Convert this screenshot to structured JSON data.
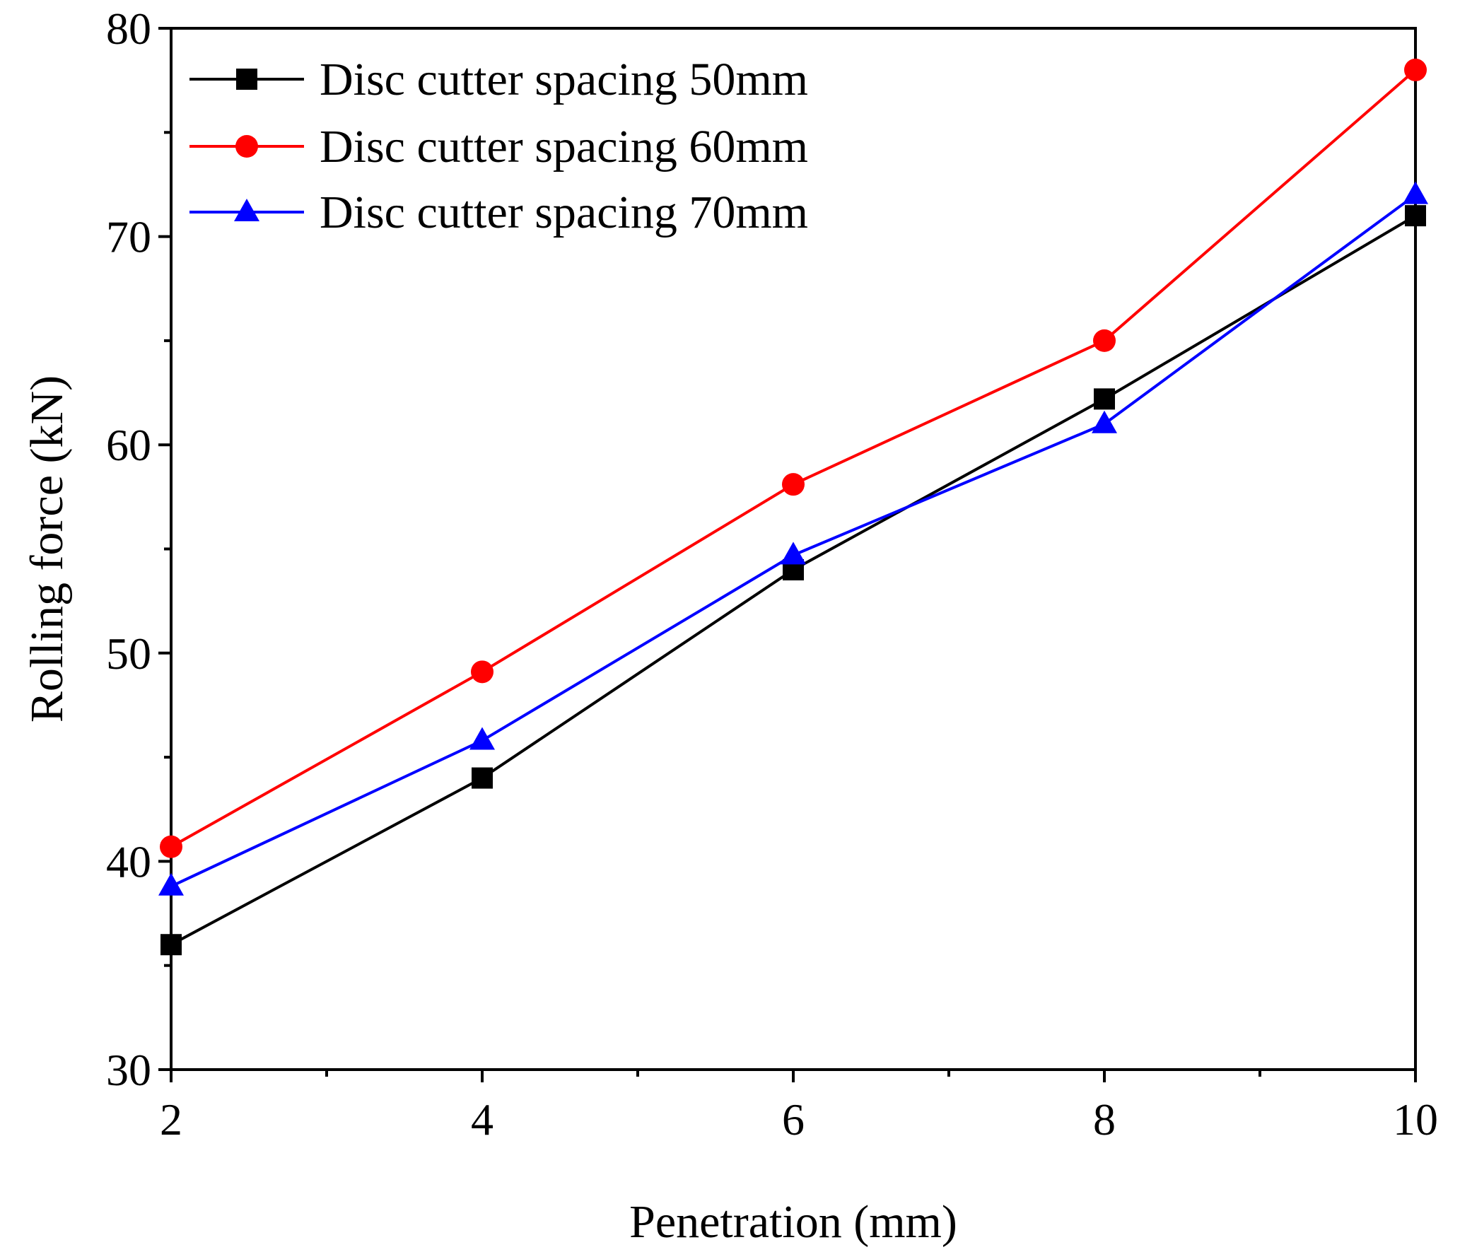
{
  "chart_data": {
    "type": "line",
    "title": "",
    "xlabel": "Penetration (mm)",
    "ylabel": "Rolling force (kN)",
    "x": [
      2,
      4,
      6,
      8,
      10
    ],
    "xlim": [
      2,
      10
    ],
    "ylim": [
      30,
      80
    ],
    "x_ticks": [
      2,
      4,
      6,
      8,
      10
    ],
    "y_ticks": [
      30,
      40,
      50,
      60,
      70,
      80
    ],
    "x_minor_ticks": [
      3,
      5,
      7,
      9
    ],
    "y_minor_ticks": [
      35,
      45,
      55,
      65,
      75
    ],
    "grid": false,
    "legend_position": "top-left",
    "series": [
      {
        "name": "Disc cutter spacing 50mm",
        "marker": "square",
        "color": "#000000",
        "values": [
          36.0,
          44.0,
          54.0,
          62.2,
          71.0
        ]
      },
      {
        "name": "Disc cutter spacing 60mm",
        "marker": "circle",
        "color": "#ff0000",
        "values": [
          40.7,
          49.1,
          58.1,
          65.0,
          78.0
        ]
      },
      {
        "name": "Disc cutter spacing 70mm",
        "marker": "triangle",
        "color": "#0000ff",
        "values": [
          38.8,
          45.8,
          54.7,
          61.0,
          72.0
        ]
      }
    ]
  }
}
